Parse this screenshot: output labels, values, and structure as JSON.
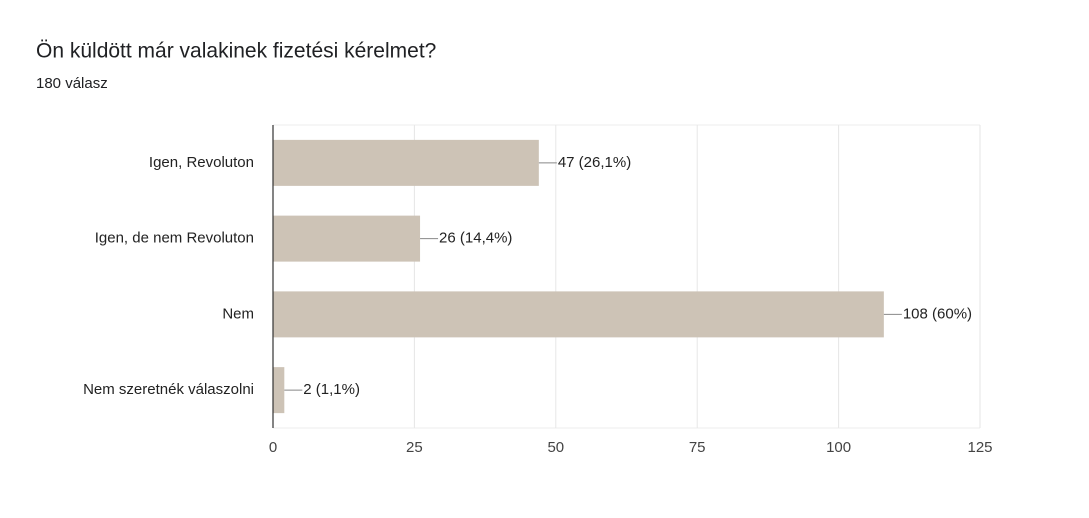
{
  "chart_data": {
    "type": "hbar",
    "title": "Ön küldött már valakinek fizetési kérelmet?",
    "subtitle": "180 válasz",
    "categories": [
      "Igen, Revoluton",
      "Igen, de nem Revoluton",
      "Nem",
      "Nem szeretnék válaszolni"
    ],
    "values": [
      47,
      26,
      108,
      2
    ],
    "value_labels": [
      "47 (26,1%)",
      "26 (14,4%)",
      "108 (60%)",
      "2 (1,1%)"
    ],
    "color": "#cdc3b6",
    "xlim": [
      0,
      125
    ],
    "xticks": [
      0,
      25,
      50,
      75,
      100,
      125
    ],
    "grid": true
  }
}
